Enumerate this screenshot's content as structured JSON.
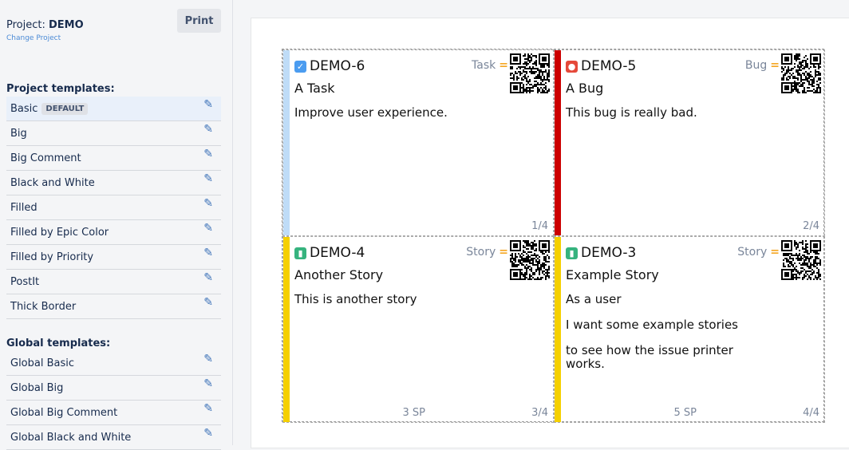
{
  "sidebar": {
    "project_label": "Project:",
    "project_name": "DEMO",
    "change_project": "Change Project",
    "print": "Print",
    "project_templates_title": "Project templates:",
    "default_badge": "DEFAULT",
    "project_templates": [
      "Basic",
      "Big",
      "Big Comment",
      "Black and White",
      "Filled",
      "Filled by Epic Color",
      "Filled by Priority",
      "PostIt",
      "Thick Border"
    ],
    "global_templates_title": "Global templates:",
    "global_templates": [
      "Global Basic",
      "Global Big",
      "Global Big Comment",
      "Global Black and White"
    ]
  },
  "cards": [
    {
      "key": "DEMO-6",
      "type": "Task",
      "type_icon": "checkbox-icon",
      "icon_color": "#4b9cf0",
      "bar_color": "#bfdcf7",
      "summary": "A Task",
      "description": [
        "Improve user experience."
      ],
      "sp": "",
      "number": "1/4"
    },
    {
      "key": "DEMO-5",
      "type": "Bug",
      "type_icon": "bug-icon",
      "icon_color": "#e5493a",
      "bar_color": "#cc0000",
      "summary": "A Bug",
      "description": [
        "This bug is really bad."
      ],
      "sp": "",
      "number": "2/4"
    },
    {
      "key": "DEMO-4",
      "type": "Story",
      "type_icon": "bookmark-icon",
      "icon_color": "#36b37e",
      "bar_color": "#f5d000",
      "summary": "Another Story",
      "description": [
        "This is another story"
      ],
      "sp": "3 SP",
      "number": "3/4"
    },
    {
      "key": "DEMO-3",
      "type": "Story",
      "type_icon": "bookmark-icon",
      "icon_color": "#36b37e",
      "bar_color": "#f5d000",
      "summary": "Example Story",
      "description": [
        "As a user",
        "I want some example stories",
        "to see how the issue printer works."
      ],
      "sp": "5 SP",
      "number": "4/4"
    }
  ],
  "priority_icon": "equals-icon",
  "priority_color": "#f5a623"
}
